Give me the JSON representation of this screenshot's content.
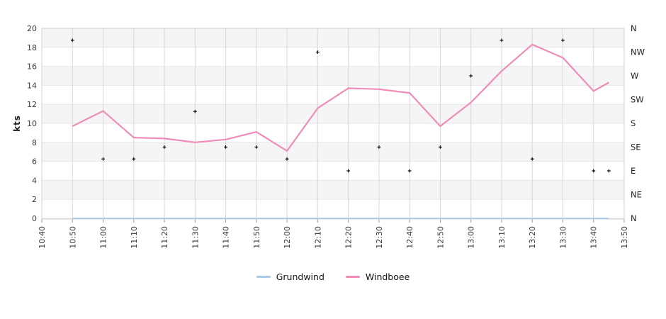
{
  "chart_data": {
    "type": "line",
    "title": "",
    "ylabel": "kts",
    "ylim": [
      0,
      20
    ],
    "y_ticks": [
      0,
      2,
      4,
      6,
      8,
      10,
      12,
      14,
      16,
      18,
      20
    ],
    "x_ticks": [
      "10:40",
      "10:50",
      "11:00",
      "11:10",
      "11:20",
      "11:30",
      "11:40",
      "11:50",
      "12:00",
      "12:10",
      "12:20",
      "12:30",
      "12:40",
      "12:50",
      "13:00",
      "13:10",
      "13:20",
      "13:30",
      "13:40",
      "13:50"
    ],
    "x_tick_rotation": 90,
    "right_axis": {
      "labels": [
        "N",
        "NW",
        "W",
        "SW",
        "S",
        "SE",
        "E",
        "NE",
        "N"
      ],
      "values": [
        20,
        17.5,
        15,
        12.5,
        10,
        7.5,
        5,
        2.5,
        0
      ]
    },
    "x": [
      "10:50",
      "11:00",
      "11:10",
      "11:20",
      "11:30",
      "11:40",
      "11:50",
      "12:00",
      "12:10",
      "12:20",
      "12:30",
      "12:40",
      "12:50",
      "13:00",
      "13:10",
      "13:20",
      "13:30",
      "13:40",
      "13:45"
    ],
    "series": [
      {
        "name": "Grundwind",
        "color": "#a8cce8",
        "values": [
          0,
          0,
          0,
          0,
          0,
          0,
          0,
          0,
          0,
          0,
          0,
          0,
          0,
          0,
          0,
          0,
          0,
          0,
          0
        ]
      },
      {
        "name": "Windboee",
        "color": "#f08cb8",
        "values": [
          9.7,
          11.3,
          8.5,
          8.4,
          8.0,
          8.3,
          9.1,
          7.1,
          11.6,
          13.7,
          13.6,
          13.2,
          9.7,
          12.2,
          15.5,
          18.3,
          16.9,
          13.4,
          14.3
        ]
      }
    ],
    "direction_markers": {
      "marker": "plus",
      "color": "#111111",
      "axis_values": [
        18.75,
        6.25,
        6.25,
        7.5,
        11.25,
        7.5,
        7.5,
        6.25,
        17.5,
        5,
        7.5,
        5,
        7.5,
        15,
        18.75,
        6.25,
        18.75,
        5,
        5
      ],
      "compass": [
        "NNW",
        "ESE",
        "ESE",
        "SE",
        "SSW",
        "SE",
        "SE",
        "ESE",
        "NW",
        "E",
        "SE",
        "E",
        "SE",
        "W",
        "NNW",
        "ESE",
        "NNW",
        "E",
        "E"
      ]
    },
    "grid": true,
    "band_colors": [
      "#ffffff",
      "#f5f5f5"
    ],
    "legend_position": "bottom-center"
  }
}
